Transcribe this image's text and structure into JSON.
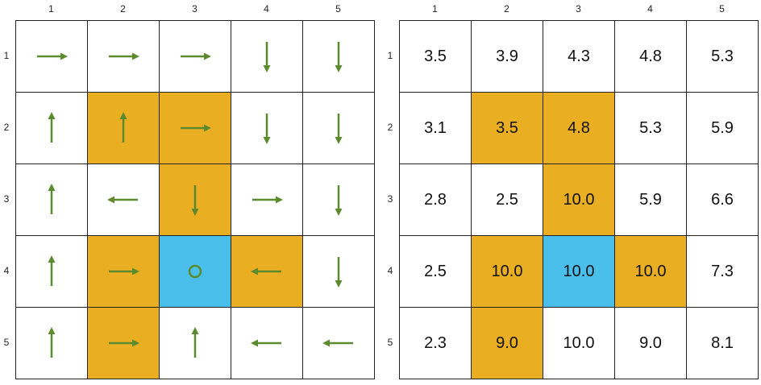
{
  "colors": {
    "empty": "#ffffff",
    "wall": "#E9AE22",
    "goal": "#4BBFEB",
    "arrow": "#5C8A2E"
  },
  "policy_panel": {
    "col_labels": [
      "1",
      "2",
      "3",
      "4",
      "5"
    ],
    "row_labels": [
      "1",
      "2",
      "3",
      "4",
      "5"
    ],
    "rows": [
      [
        {
          "type": "empty",
          "action": "right"
        },
        {
          "type": "empty",
          "action": "right"
        },
        {
          "type": "empty",
          "action": "right"
        },
        {
          "type": "empty",
          "action": "down"
        },
        {
          "type": "empty",
          "action": "down"
        }
      ],
      [
        {
          "type": "empty",
          "action": "up"
        },
        {
          "type": "wall",
          "action": "up"
        },
        {
          "type": "wall",
          "action": "right"
        },
        {
          "type": "empty",
          "action": "down"
        },
        {
          "type": "empty",
          "action": "down"
        }
      ],
      [
        {
          "type": "empty",
          "action": "up"
        },
        {
          "type": "empty",
          "action": "left"
        },
        {
          "type": "wall",
          "action": "down"
        },
        {
          "type": "empty",
          "action": "right"
        },
        {
          "type": "empty",
          "action": "down"
        }
      ],
      [
        {
          "type": "empty",
          "action": "up"
        },
        {
          "type": "wall",
          "action": "right"
        },
        {
          "type": "goal",
          "action": "stay"
        },
        {
          "type": "wall",
          "action": "left"
        },
        {
          "type": "empty",
          "action": "down"
        }
      ],
      [
        {
          "type": "empty",
          "action": "up"
        },
        {
          "type": "wall",
          "action": "right"
        },
        {
          "type": "empty",
          "action": "up"
        },
        {
          "type": "empty",
          "action": "left"
        },
        {
          "type": "empty",
          "action": "left"
        }
      ]
    ]
  },
  "value_panel": {
    "col_labels": [
      "1",
      "2",
      "3",
      "4",
      "5"
    ],
    "row_labels": [
      "1",
      "2",
      "3",
      "4",
      "5"
    ],
    "rows": [
      [
        {
          "type": "empty",
          "value": "3.5"
        },
        {
          "type": "empty",
          "value": "3.9"
        },
        {
          "type": "empty",
          "value": "4.3"
        },
        {
          "type": "empty",
          "value": "4.8"
        },
        {
          "type": "empty",
          "value": "5.3"
        }
      ],
      [
        {
          "type": "empty",
          "value": "3.1"
        },
        {
          "type": "wall",
          "value": "3.5"
        },
        {
          "type": "wall",
          "value": "4.8"
        },
        {
          "type": "empty",
          "value": "5.3"
        },
        {
          "type": "empty",
          "value": "5.9"
        }
      ],
      [
        {
          "type": "empty",
          "value": "2.8"
        },
        {
          "type": "empty",
          "value": "2.5"
        },
        {
          "type": "wall",
          "value": "10.0"
        },
        {
          "type": "empty",
          "value": "5.9"
        },
        {
          "type": "empty",
          "value": "6.6"
        }
      ],
      [
        {
          "type": "empty",
          "value": "2.5"
        },
        {
          "type": "wall",
          "value": "10.0"
        },
        {
          "type": "goal",
          "value": "10.0"
        },
        {
          "type": "wall",
          "value": "10.0"
        },
        {
          "type": "empty",
          "value": "7.3"
        }
      ],
      [
        {
          "type": "empty",
          "value": "2.3"
        },
        {
          "type": "wall",
          "value": "9.0"
        },
        {
          "type": "empty",
          "value": "10.0"
        },
        {
          "type": "empty",
          "value": "9.0"
        },
        {
          "type": "empty",
          "value": "8.1"
        }
      ]
    ]
  }
}
